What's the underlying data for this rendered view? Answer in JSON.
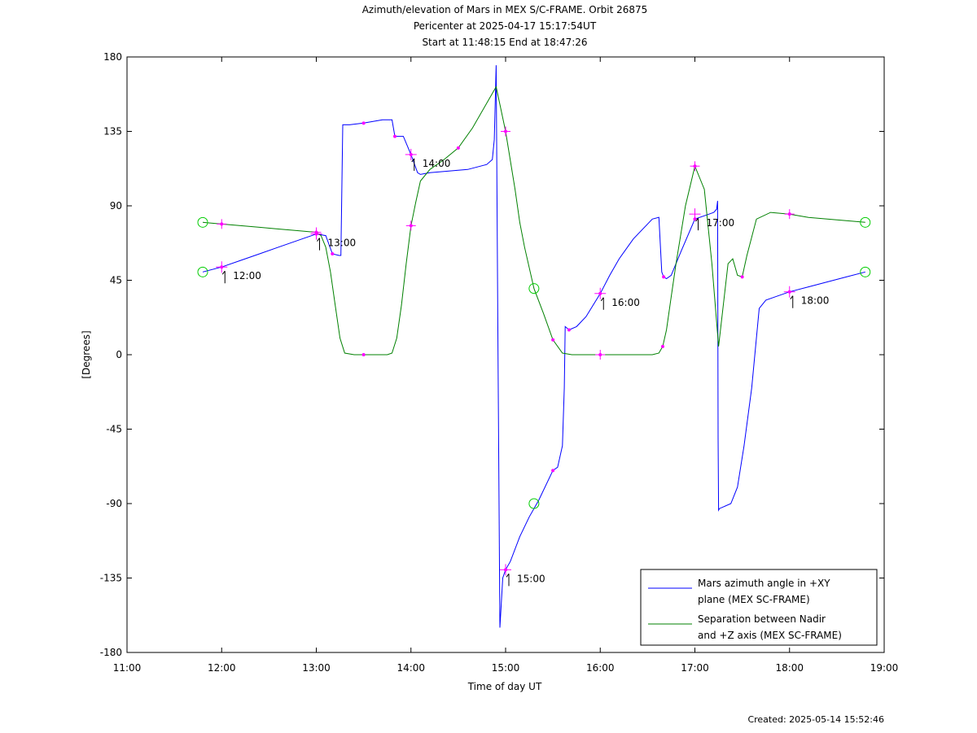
{
  "title": {
    "line1": "Azimuth/elevation of Mars in MEX S/C-FRAME.  Orbit 26875",
    "line2": "Pericenter at 2025-04-17 15:17:54UT",
    "line3": "Start at 11:48:15 End at 18:47:26"
  },
  "footer": {
    "created": "Created: 2025-05-14 15:52:46"
  },
  "colors": {
    "azimuth": "#0000ff",
    "separation": "#008000",
    "marker": "#ff00ff",
    "endpoint": "#00cc00"
  },
  "chart_data": {
    "type": "line",
    "xlabel": "Time of day UT",
    "ylabel": "[Degrees]",
    "xlim": [
      11.0,
      19.0
    ],
    "ylim": [
      -180,
      180
    ],
    "xticks": [
      11,
      12,
      13,
      14,
      15,
      16,
      17,
      18,
      19
    ],
    "xtick_labels": [
      "11:00",
      "12:00",
      "13:00",
      "14:00",
      "15:00",
      "16:00",
      "17:00",
      "18:00",
      "19:00"
    ],
    "yticks": [
      180,
      135,
      90,
      45,
      0,
      -45,
      -90,
      -135,
      -180
    ],
    "grid": false,
    "legend": "bottom-right",
    "series": [
      {
        "name": "Mars azimuth angle in +XY plane (MEX SC-FRAME)",
        "color": "#0000ff",
        "x": [
          11.8,
          12.0,
          12.2,
          12.4,
          12.6,
          12.8,
          13.0,
          13.1,
          13.17,
          13.24,
          13.26,
          13.28,
          13.3,
          13.35,
          13.5,
          13.7,
          13.8,
          13.83,
          13.92,
          14.0,
          14.07,
          14.1,
          14.2,
          14.4,
          14.6,
          14.8,
          14.86,
          14.88,
          14.9,
          14.92,
          14.94,
          14.97,
          15.0,
          15.05,
          15.15,
          15.25,
          15.35,
          15.5,
          15.55,
          15.6,
          15.62,
          15.63,
          15.67,
          15.75,
          15.85,
          16.0,
          16.1,
          16.2,
          16.35,
          16.55,
          16.62,
          16.65,
          16.67,
          16.7,
          16.75,
          16.85,
          17.0,
          17.15,
          17.2,
          17.23,
          17.24,
          17.245,
          17.25,
          17.26,
          17.3,
          17.38,
          17.45,
          17.52,
          17.6,
          17.68,
          17.75,
          17.85,
          18.0,
          18.2,
          18.4,
          18.6,
          18.8
        ],
        "y": [
          50,
          53,
          57,
          61,
          65,
          69,
          73,
          72,
          61,
          60,
          60,
          139,
          139,
          139,
          140,
          142,
          142,
          132,
          132,
          121,
          110,
          109,
          110,
          111,
          112,
          115,
          118,
          130,
          175,
          0,
          -165,
          -135,
          -130,
          -125,
          -110,
          -98,
          -88,
          -70,
          -68,
          -55,
          -20,
          17,
          15,
          17,
          23,
          37,
          48,
          58,
          70,
          82,
          83,
          50,
          47,
          46,
          48,
          62,
          82,
          85,
          86,
          88,
          93,
          -50,
          -94,
          -93,
          -92,
          -90,
          -80,
          -55,
          -20,
          28,
          33,
          35,
          38,
          41,
          44,
          47,
          50
        ]
      },
      {
        "name": "Separation between Nadir and +Z axis (MEX SC-FRAME)",
        "color": "#008000",
        "x": [
          11.8,
          12.0,
          12.2,
          12.4,
          12.6,
          12.8,
          13.0,
          13.05,
          13.1,
          13.15,
          13.2,
          13.25,
          13.3,
          13.4,
          13.5,
          13.6,
          13.7,
          13.75,
          13.8,
          13.85,
          13.9,
          13.95,
          14.0,
          14.05,
          14.1,
          14.2,
          14.35,
          14.5,
          14.65,
          14.8,
          14.9,
          15.0,
          15.1,
          15.15,
          15.2,
          15.3,
          15.4,
          15.5,
          15.6,
          15.7,
          16.0,
          16.3,
          16.55,
          16.62,
          16.66,
          16.7,
          16.75,
          16.8,
          16.9,
          17.0,
          17.1,
          17.18,
          17.25,
          17.3,
          17.35,
          17.4,
          17.45,
          17.5,
          17.55,
          17.65,
          17.8,
          18.0,
          18.2,
          18.4,
          18.6,
          18.8
        ],
        "y": [
          80,
          79,
          78,
          77,
          76,
          75,
          74,
          72,
          65,
          50,
          30,
          10,
          1,
          0,
          0,
          0,
          0,
          0,
          1,
          10,
          30,
          55,
          78,
          92,
          105,
          112,
          118,
          125,
          137,
          152,
          162,
          135,
          100,
          80,
          65,
          40,
          25,
          9,
          1,
          0,
          0,
          0,
          0,
          1,
          5,
          15,
          35,
          55,
          90,
          114,
          100,
          55,
          5,
          30,
          55,
          58,
          48,
          47,
          60,
          82,
          86,
          85,
          83,
          82,
          81,
          80
        ]
      }
    ],
    "time_annotations": [
      {
        "label": "12:00",
        "x": 12.0,
        "y": 53
      },
      {
        "label": "13:00",
        "x": 13.0,
        "y": 73
      },
      {
        "label": "14:00",
        "x": 14.0,
        "y": 121
      },
      {
        "label": "15:00",
        "x": 15.0,
        "y": -130
      },
      {
        "label": "16:00",
        "x": 16.0,
        "y": 37
      },
      {
        "label": "17:00",
        "x": 17.0,
        "y": 85
      },
      {
        "label": "18:00",
        "x": 18.0,
        "y": 38
      }
    ],
    "endpoint_markers": [
      {
        "x": 11.8,
        "y": 80
      },
      {
        "x": 11.8,
        "y": 50
      },
      {
        "x": 18.8,
        "y": 80
      },
      {
        "x": 18.8,
        "y": 50
      },
      {
        "x": 15.3,
        "y": 40
      },
      {
        "x": 15.3,
        "y": -90
      }
    ]
  }
}
